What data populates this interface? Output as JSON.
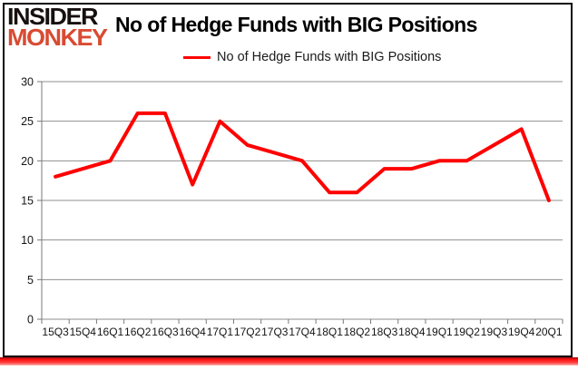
{
  "logo": {
    "line1": "INSIDER",
    "line2": "MONKEY"
  },
  "title": "No of Hedge Funds with BIG Positions",
  "legend": {
    "label": "No of Hedge Funds with BIG Positions"
  },
  "colors": {
    "series": "#ff0000",
    "grid": "#8f8f8f",
    "axis": "#7a7a7a",
    "tick_text": "#141414",
    "logo_black": "#16100f",
    "logo_red": "#d84b32",
    "bottom_strip": "#ff1414"
  },
  "chart_data": {
    "type": "line",
    "title": "No of Hedge Funds with BIG Positions",
    "categories": [
      "15Q3",
      "15Q4",
      "16Q1",
      "16Q2",
      "16Q3",
      "16Q4",
      "17Q1",
      "17Q2",
      "17Q3",
      "17Q4",
      "18Q1",
      "18Q2",
      "18Q3",
      "18Q4",
      "19Q1",
      "19Q2",
      "19Q3",
      "19Q4",
      "20Q1"
    ],
    "series": [
      {
        "name": "No of Hedge Funds with BIG Positions",
        "color": "#ff0000",
        "values": [
          18,
          19,
          20,
          26,
          26,
          17,
          25,
          22,
          21,
          20,
          16,
          16,
          19,
          19,
          20,
          20,
          22,
          24,
          15
        ]
      }
    ],
    "xlabel": "",
    "ylabel": "",
    "ylim": [
      0,
      30
    ],
    "yticks": [
      0,
      5,
      10,
      15,
      20,
      25,
      30
    ],
    "grid": true,
    "legend_position": "top-center"
  }
}
